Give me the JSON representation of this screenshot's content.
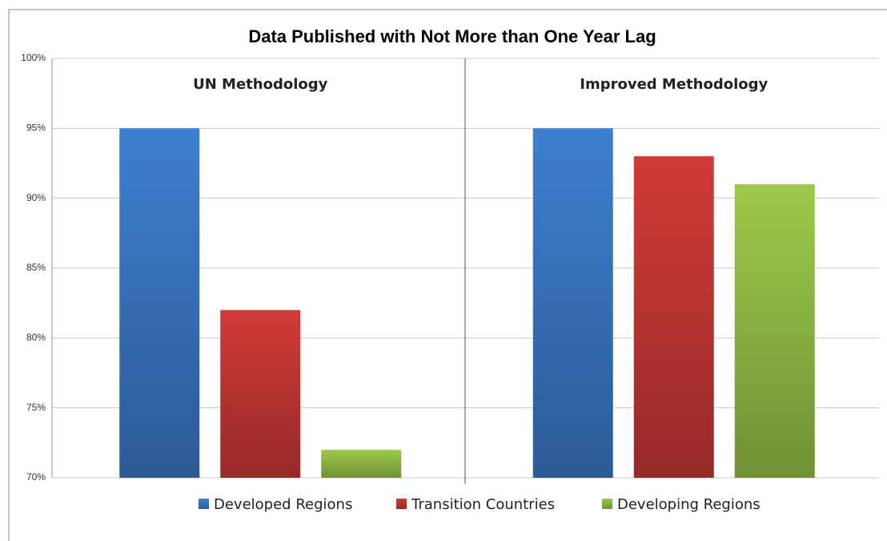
{
  "chart_data": {
    "type": "bar",
    "title": "Data Published with Not More than One Year Lag",
    "categories": [
      "UN Methodology",
      "Improved Methodology"
    ],
    "series": [
      {
        "name": "Developed Regions",
        "color": "#3d7fd0",
        "values": [
          95,
          95
        ]
      },
      {
        "name": "Transition Countries",
        "color": "#d03b38",
        "values": [
          82,
          93
        ]
      },
      {
        "name": "Developing Regions",
        "color": "#9cc94a",
        "values": [
          72,
          91
        ]
      }
    ],
    "ylim": [
      70,
      100
    ],
    "yticks": [
      {
        "value": 70,
        "label": "70%"
      },
      {
        "value": 75,
        "label": "75%"
      },
      {
        "value": 80,
        "label": "80%"
      },
      {
        "value": 85,
        "label": "85%"
      },
      {
        "value": 90,
        "label": "90%"
      },
      {
        "value": 95,
        "label": "95%"
      },
      {
        "value": 100,
        "label": "100%"
      }
    ],
    "grid": true,
    "legend": "bottom"
  }
}
